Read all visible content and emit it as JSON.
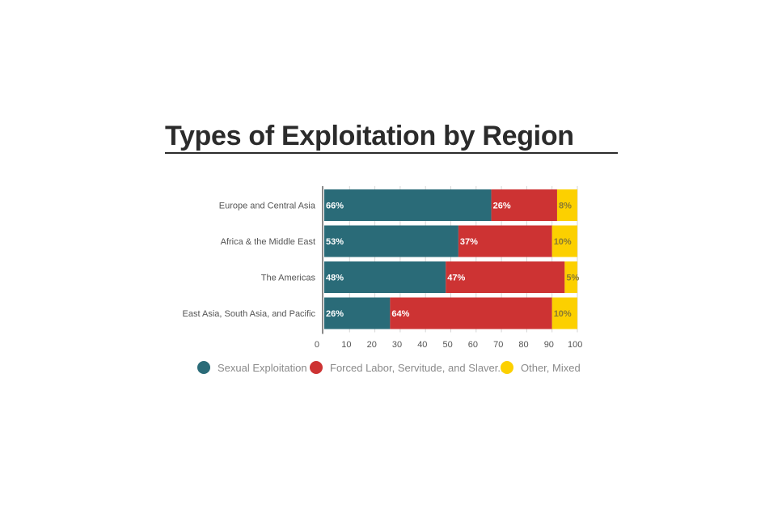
{
  "chart_data": {
    "type": "bar",
    "orientation": "horizontal",
    "stacked": true,
    "title": "Types of Exploitation by Region",
    "categories": [
      "Europe and Central Asia",
      "Africa & the Middle East",
      "The Americas",
      "East Asia, South Asia, and Pacific"
    ],
    "series": [
      {
        "name": "Sexual Exploitation",
        "values": [
          66,
          53,
          48,
          26
        ],
        "color": "#2a6b78",
        "label_color": "#ffffff"
      },
      {
        "name": "Forced Labor, Servitude, and Slaver...",
        "values": [
          26,
          37,
          47,
          64
        ],
        "color": "#cd3333",
        "label_color": "#ffffff"
      },
      {
        "name": "Other, Mixed",
        "values": [
          8,
          10,
          5,
          10
        ],
        "color": "#fcd000",
        "label_color": "#8a7a30"
      }
    ],
    "data_labels": [
      [
        "66%",
        "53%",
        "48%",
        "26%"
      ],
      [
        "26%",
        "37%",
        "47%",
        "64%"
      ],
      [
        "8%",
        "10%",
        "5%",
        "10%"
      ]
    ],
    "xlim": [
      0,
      100
    ],
    "xticks": [
      0,
      10,
      20,
      30,
      40,
      50,
      60,
      70,
      80,
      90,
      100
    ],
    "xtick_labels": [
      "0",
      "10",
      "20",
      "30",
      "40",
      "50",
      "60",
      "70",
      "80",
      "90",
      "100"
    ],
    "grid": true,
    "legend_position": "bottom"
  }
}
